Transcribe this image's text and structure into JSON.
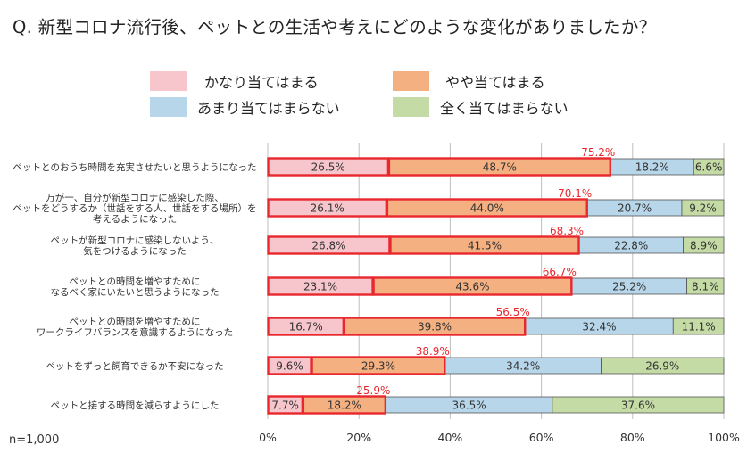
{
  "title": "Q. 新型コロナ流行後、ペットとの生活や考えにどのような変化がありましたか？",
  "sample_note": "n=1,000",
  "colors": {
    "very_applicable": "#f7c5cc",
    "somewhat_applicable": "#f4b081",
    "not_very_applicable": "#b7d6ea",
    "not_applicable": "#c5dba5",
    "highlight": "#e8282d",
    "grid": "#bfbfbf"
  },
  "legend": [
    {
      "label": "かなり当てはまる",
      "color_key": "very_applicable"
    },
    {
      "label": "やや当てはまる",
      "color_key": "somewhat_applicable"
    },
    {
      "label": "あまり当てはまらない",
      "color_key": "not_very_applicable"
    },
    {
      "label": "全く当てはまらない",
      "color_key": "not_applicable"
    }
  ],
  "chart_data": {
    "type": "bar",
    "orientation": "horizontal",
    "stacked": "percent",
    "title": "Q. 新型コロナ流行後、ペットとの生活や考えにどのような変化がありましたか？",
    "xlim": [
      0,
      100
    ],
    "x_ticks": [
      "0%",
      "20%",
      "40%",
      "60%",
      "80%",
      "100%"
    ],
    "x_tick_values": [
      0,
      20,
      40,
      60,
      80,
      100
    ],
    "grid": true,
    "categories": [
      [
        "ペットとのおうち時間を充実させたいと思うようになった"
      ],
      [
        "万が一、自分が新型コロナに感染した際、",
        "ペットをどうするか（世話をする人、世話をする場所）を",
        "考えるようになった"
      ],
      [
        "ペットが新型コロナに感染しないよう、",
        "気をつけるようになった"
      ],
      [
        "ペットとの時間を増やすために",
        "なるべく家にいたいと思うようになった"
      ],
      [
        "ペットとの時間を増やすために",
        "ワークライフバランスを意識するようになった"
      ],
      [
        "ペットをずっと飼育できるか不安になった"
      ],
      [
        "ペットと接する時間を減らすようにした"
      ]
    ],
    "series": [
      {
        "name": "かなり当てはまる",
        "color_key": "very_applicable",
        "values": [
          26.5,
          26.1,
          26.8,
          23.1,
          16.7,
          9.6,
          7.7
        ],
        "labels": [
          "26.5%",
          "26.1%",
          "26.8%",
          "23.1%",
          "16.7%",
          "9.6%",
          "7.7%"
        ]
      },
      {
        "name": "やや当てはまる",
        "color_key": "somewhat_applicable",
        "values": [
          48.7,
          44.0,
          41.5,
          43.6,
          39.8,
          29.3,
          18.2
        ],
        "labels": [
          "48.7%",
          "44.0%",
          "41.5%",
          "43.6%",
          "39.8%",
          "29.3%",
          "18.2%"
        ]
      },
      {
        "name": "あまり当てはまらない",
        "color_key": "not_very_applicable",
        "values": [
          18.2,
          20.7,
          22.8,
          25.2,
          32.4,
          34.2,
          36.5
        ],
        "labels": [
          "18.2%",
          "20.7%",
          "22.8%",
          "25.2%",
          "32.4%",
          "34.2%",
          "36.5%"
        ]
      },
      {
        "name": "全く当てはまらない",
        "color_key": "not_applicable",
        "values": [
          6.6,
          9.2,
          8.9,
          8.1,
          11.1,
          26.9,
          37.6
        ],
        "labels": [
          "6.6%",
          "9.2%",
          "8.9%",
          "8.1%",
          "11.1%",
          "26.9%",
          "37.6%"
        ]
      }
    ],
    "highlight_totals": {
      "description": "かなり当てはまる + やや当てはまる",
      "values": [
        75.2,
        70.1,
        68.3,
        66.7,
        56.5,
        38.9,
        25.9
      ],
      "labels": [
        "75.2%",
        "70.1%",
        "68.3%",
        "66.7%",
        "56.5%",
        "38.9%",
        "25.9%"
      ]
    }
  }
}
